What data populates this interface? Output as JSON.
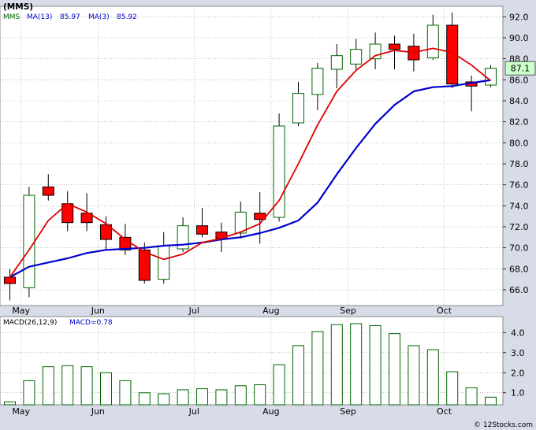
{
  "symbol_label": "(MMS)",
  "legend": {
    "symbol": "MMS",
    "ma_long": "MA(13)",
    "ma_long_value": "85.97",
    "ma_short": "MA(3)",
    "ma_short_value": "85.92"
  },
  "last_price_label": "87.1",
  "macd_label": {
    "name": "MACD(26,12,9)",
    "value": "MACD=0.78"
  },
  "watermark": "© 12Stocks.com",
  "colors": {
    "up_candle": "#ffffff",
    "down_candle": "#ff0000",
    "candle_outline": "#006400",
    "ma_long": "#0000cc",
    "ma_short": "#dd0000",
    "macd_bar_outline": "#006400",
    "panel_bg": "#ffffff",
    "frame_bg": "#d8dce8",
    "grid": "#999999",
    "price_box_bg": "#ccffcc"
  },
  "chart_data": [
    {
      "type": "candlestick",
      "title": "(MMS)",
      "ylim": [
        64.5,
        93
      ],
      "y_ticks": [
        66,
        68,
        70,
        72,
        74,
        76,
        78,
        80,
        82,
        84,
        86,
        88,
        90,
        92
      ],
      "x_ticks": [
        "May",
        "Jun",
        "Jul",
        "Aug",
        "Sep",
        "Oct"
      ],
      "x_tick_index": [
        1,
        5,
        10,
        14,
        18,
        23
      ],
      "candles": [
        {
          "o": 67.2,
          "h": 68.0,
          "l": 65.0,
          "c": 66.6
        },
        {
          "o": 66.2,
          "h": 75.8,
          "l": 65.3,
          "c": 75.0
        },
        {
          "o": 75.8,
          "h": 77.0,
          "l": 74.5,
          "c": 75.0
        },
        {
          "o": 74.2,
          "h": 75.4,
          "l": 71.6,
          "c": 72.4
        },
        {
          "o": 73.3,
          "h": 75.2,
          "l": 71.6,
          "c": 72.4
        },
        {
          "o": 72.2,
          "h": 73.0,
          "l": 69.8,
          "c": 70.8
        },
        {
          "o": 71.0,
          "h": 72.3,
          "l": 69.3,
          "c": 69.8
        },
        {
          "o": 69.8,
          "h": 70.5,
          "l": 66.6,
          "c": 66.9
        },
        {
          "o": 67.0,
          "h": 71.5,
          "l": 66.6,
          "c": 70.2
        },
        {
          "o": 69.9,
          "h": 72.9,
          "l": 69.6,
          "c": 72.1
        },
        {
          "o": 72.1,
          "h": 73.8,
          "l": 71.0,
          "c": 71.3
        },
        {
          "o": 71.5,
          "h": 72.4,
          "l": 69.6,
          "c": 70.9
        },
        {
          "o": 71.4,
          "h": 74.4,
          "l": 70.9,
          "c": 73.4
        },
        {
          "o": 73.3,
          "h": 75.3,
          "l": 70.4,
          "c": 72.7
        },
        {
          "o": 72.9,
          "h": 82.8,
          "l": 72.5,
          "c": 81.6
        },
        {
          "o": 81.9,
          "h": 85.8,
          "l": 81.6,
          "c": 84.7
        },
        {
          "o": 84.6,
          "h": 87.6,
          "l": 83.1,
          "c": 87.1
        },
        {
          "o": 87.0,
          "h": 89.4,
          "l": 85.2,
          "c": 88.3
        },
        {
          "o": 87.5,
          "h": 89.9,
          "l": 87.0,
          "c": 88.9
        },
        {
          "o": 88.0,
          "h": 90.5,
          "l": 87.0,
          "c": 89.4
        },
        {
          "o": 89.4,
          "h": 90.2,
          "l": 87.0,
          "c": 88.9
        },
        {
          "o": 89.2,
          "h": 90.4,
          "l": 86.8,
          "c": 87.9
        },
        {
          "o": 88.1,
          "h": 92.2,
          "l": 87.9,
          "c": 91.2
        },
        {
          "o": 91.2,
          "h": 92.4,
          "l": 85.2,
          "c": 85.6
        },
        {
          "o": 85.8,
          "h": 86.4,
          "l": 83.0,
          "c": 85.4
        },
        {
          "o": 85.5,
          "h": 87.4,
          "l": 85.3,
          "c": 87.1
        }
      ],
      "series": [
        {
          "name": "MA(13)",
          "values": [
            67.2,
            68.2,
            68.6,
            69.0,
            69.5,
            69.8,
            69.9,
            70.0,
            70.2,
            70.3,
            70.5,
            70.8,
            71.0,
            71.4,
            71.9,
            72.6,
            74.3,
            77.0,
            79.5,
            81.8,
            83.6,
            84.9,
            85.3,
            85.4,
            85.7,
            85.97
          ]
        },
        {
          "name": "MA(3)",
          "values": [
            67.2,
            69.8,
            72.6,
            74.2,
            73.4,
            72.3,
            70.8,
            69.6,
            68.9,
            69.4,
            70.5,
            70.9,
            71.5,
            72.3,
            74.5,
            78.0,
            81.7,
            84.9,
            86.9,
            88.3,
            88.8,
            88.6,
            89.0,
            88.6,
            87.4,
            85.92
          ]
        }
      ]
    },
    {
      "type": "bar",
      "title": "MACD(26,12,9)",
      "ylim": [
        0.4,
        4.8
      ],
      "y_ticks": [
        1.0,
        2.0,
        3.0,
        4.0
      ],
      "y_tick_labels": [
        "1.0",
        "2.0",
        "3.0",
        "4.0"
      ],
      "x_ticks": [
        "May",
        "Jun",
        "Jul",
        "Aug",
        "Sep",
        "Oct"
      ],
      "values": [
        0.55,
        1.6,
        2.3,
        2.35,
        2.3,
        2.0,
        1.6,
        1.0,
        0.95,
        1.15,
        1.2,
        1.15,
        1.35,
        1.4,
        2.4,
        3.35,
        4.05,
        4.4,
        4.45,
        4.35,
        3.95,
        3.35,
        3.15,
        2.05,
        1.25,
        0.78
      ]
    }
  ]
}
